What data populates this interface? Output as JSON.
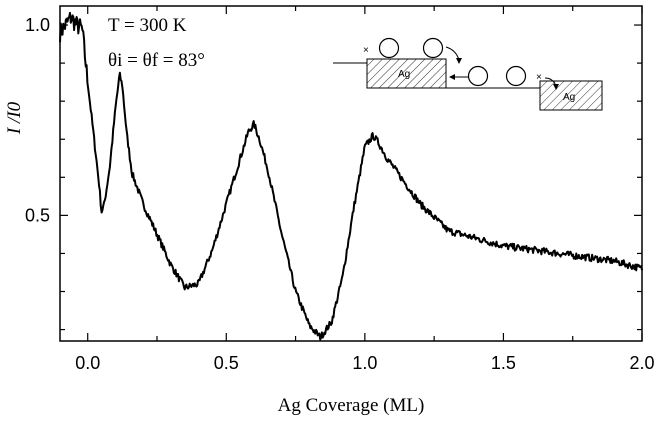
{
  "chart_data": {
    "type": "line",
    "title": "",
    "xlabel": "Ag Coverage (ML)",
    "ylabel": "I /I0",
    "xlim": [
      -0.1,
      2.0
    ],
    "ylim": [
      0.17,
      1.05
    ],
    "grid": false,
    "x_ticks": [
      0.0,
      0.5,
      1.0,
      1.5,
      2.0
    ],
    "x_tick_labels": [
      "0.0",
      "0.5",
      "1.0",
      "1.5",
      "2.0"
    ],
    "y_ticks": [
      0.5,
      1.0
    ],
    "y_tick_labels": [
      "0.5",
      "1.0"
    ],
    "annotations": {
      "temperature": "T = 300 K",
      "angle": "θi = θf = 83°",
      "inset_label": "Ag"
    },
    "series": [
      {
        "x": [
          -0.1,
          -0.08,
          -0.06,
          -0.04,
          -0.02,
          0.0,
          0.02,
          0.04,
          0.05,
          0.06,
          0.08,
          0.1,
          0.115,
          0.125,
          0.14,
          0.16,
          0.2,
          0.25,
          0.3,
          0.35,
          0.4,
          0.45,
          0.5,
          0.55,
          0.58,
          0.6,
          0.62,
          0.65,
          0.7,
          0.75,
          0.8,
          0.84,
          0.88,
          0.92,
          0.96,
          1.0,
          1.03,
          1.05,
          1.08,
          1.12,
          1.2,
          1.3,
          1.4,
          1.5,
          1.6,
          1.7,
          1.8,
          1.9,
          2.0
        ],
        "y": [
          0.98,
          1.0,
          1.02,
          1.0,
          0.99,
          0.85,
          0.72,
          0.59,
          0.51,
          0.53,
          0.63,
          0.78,
          0.87,
          0.84,
          0.72,
          0.61,
          0.53,
          0.45,
          0.37,
          0.31,
          0.32,
          0.41,
          0.53,
          0.65,
          0.72,
          0.74,
          0.7,
          0.62,
          0.45,
          0.3,
          0.21,
          0.18,
          0.22,
          0.34,
          0.52,
          0.68,
          0.71,
          0.69,
          0.65,
          0.61,
          0.53,
          0.46,
          0.44,
          0.42,
          0.41,
          0.4,
          0.39,
          0.38,
          0.36
        ]
      }
    ]
  }
}
